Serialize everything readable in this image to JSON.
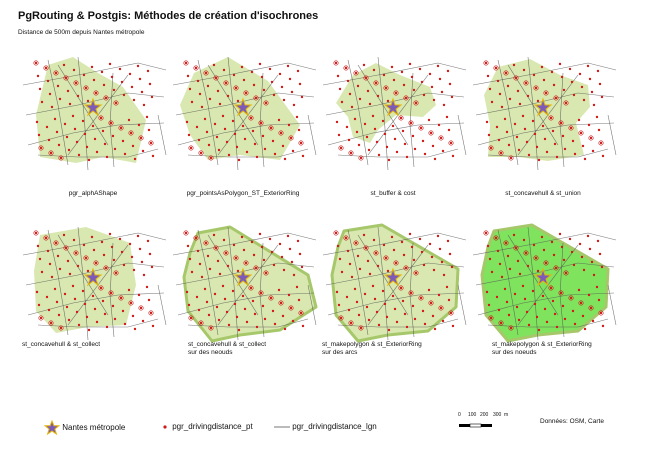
{
  "title": "PgRouting & Postgis: Méthodes de création d'isochrones",
  "subtitle": "Distance de 500m depuis Nantes métropole",
  "colors": {
    "isochrone": "#d9e8b0",
    "isochrone_strong": "#7fe35e",
    "isochrone_edge": "#a6c86a",
    "roads_gray": "#555555",
    "points": "#d11a1a",
    "star_fill": "#7b5ab9"
  },
  "panels": [
    {
      "caption": "pgr_alphAShape",
      "shape": "alpha"
    },
    {
      "caption": "pgr_pointsAsPolygon_ST_ExteriorRing",
      "shape": "points_polygon"
    },
    {
      "caption": "st_buffer &    cost",
      "shape": "buffer"
    },
    {
      "caption": "st_concavehull & st_union",
      "shape": "concave_union"
    },
    {
      "caption": "st_concavehull & st_collect",
      "shape": "concave_collect"
    },
    {
      "caption": "st_concavehull & st_collect\nsur des neouds",
      "shape": "concave_nodes"
    },
    {
      "caption": "st_makepolygon & st_ExteriorRing\nsur des arcs",
      "shape": "makepolygon_arcs"
    },
    {
      "caption": "st_makepolygon & st_ExteriorRing\nsur des noeuds",
      "shape": "makepolygon_nodes"
    }
  ],
  "legend": {
    "nantes_label": "Nantes métropole",
    "points_label": "pgr_drivingdistance_pt",
    "lines_label": "pgr_drivingdistance_lgn",
    "scale_ticks": [
      "0",
      "100",
      "200",
      "300",
      "m"
    ]
  },
  "credits": "Données: OSM, Carte"
}
